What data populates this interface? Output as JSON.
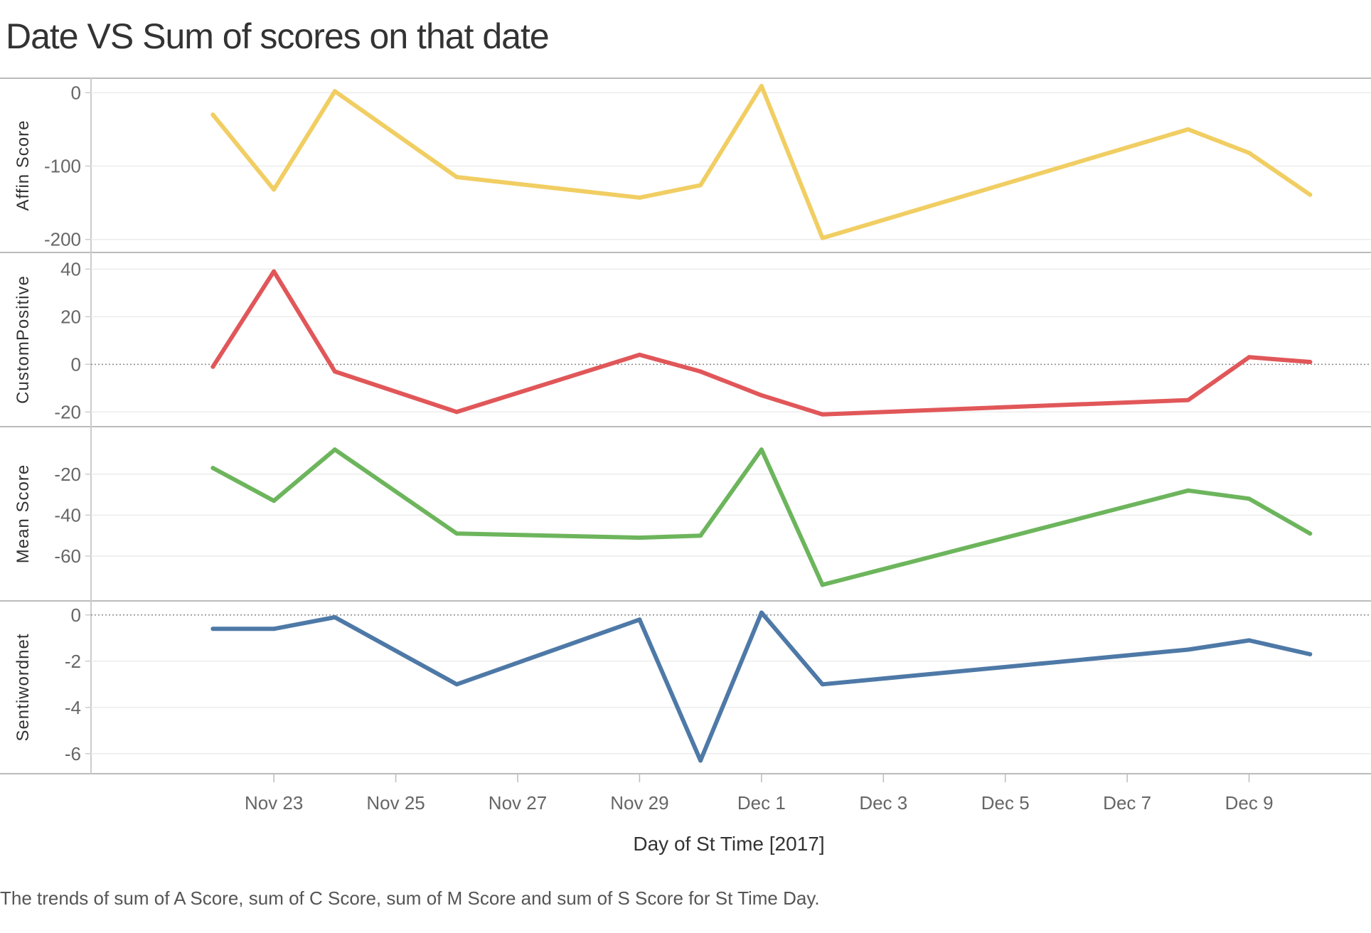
{
  "title": "Date VS Sum of scores on that date",
  "caption": "The trends of sum of A Score, sum of C Score, sum of M Score and sum of S Score for St Time Day.",
  "chart_data": {
    "type": "line",
    "x_label": "Day of St Time [2017]",
    "x_dates": [
      "2017-11-22",
      "2017-11-23",
      "2017-11-24",
      "2017-11-26",
      "2017-11-29",
      "2017-11-30",
      "2017-12-01",
      "2017-12-02",
      "2017-12-08",
      "2017-12-09",
      "2017-12-10"
    ],
    "x_tick_labels": [
      "Nov 23",
      "Nov 25",
      "Nov 27",
      "Nov 29",
      "Dec 1",
      "Dec 3",
      "Dec 5",
      "Dec 7",
      "Dec 9"
    ],
    "x_tick_dates": [
      "2017-11-23",
      "2017-11-25",
      "2017-11-27",
      "2017-11-29",
      "2017-12-01",
      "2017-12-03",
      "2017-12-05",
      "2017-12-07",
      "2017-12-09"
    ],
    "x_range": [
      "2017-11-20",
      "2017-12-11"
    ],
    "panels": [
      {
        "ylabel": "Affin Score",
        "color": "#F1CE63",
        "ylim": [
          -208,
          10
        ],
        "ticks": [
          0,
          -100,
          -200
        ],
        "tick_labels": [
          "0",
          "-100",
          "-200"
        ],
        "zero_line": false,
        "values": [
          -30,
          -132,
          2,
          -115,
          -143,
          -126,
          9,
          -198,
          -50,
          -82,
          -139
        ]
      },
      {
        "ylabel": "CustomPositive",
        "color": "#E15759",
        "ylim": [
          -22,
          44
        ],
        "ticks": [
          40,
          20,
          0,
          -20
        ],
        "tick_labels": [
          "40",
          "20",
          "0",
          "-20"
        ],
        "zero_line": true,
        "values": [
          -1,
          39,
          -3,
          -20,
          4,
          -3,
          -13,
          -21,
          -15,
          3,
          1
        ]
      },
      {
        "ylabel": "Mean Score",
        "color": "#6DB55C",
        "ylim": [
          -77,
          -1
        ],
        "ticks": [
          -20,
          -40,
          -60
        ],
        "tick_labels": [
          "-20",
          "-40",
          "-60"
        ],
        "zero_line": false,
        "values": [
          -17,
          -33,
          -8,
          -49,
          -51,
          -50,
          -8,
          -74,
          -28,
          -32,
          -49
        ]
      },
      {
        "ylabel": "Sentiwordnet",
        "color": "#4E79A7",
        "ylim": [
          -6.5,
          0.3
        ],
        "ticks": [
          0,
          -2,
          -4,
          -6
        ],
        "tick_labels": [
          "0",
          "-2",
          "-4",
          "-6"
        ],
        "zero_line": true,
        "values": [
          -0.6,
          -0.6,
          -0.1,
          -3.0,
          -0.2,
          -6.3,
          0.1,
          -3.0,
          -1.5,
          -1.1,
          -1.7
        ]
      }
    ]
  }
}
